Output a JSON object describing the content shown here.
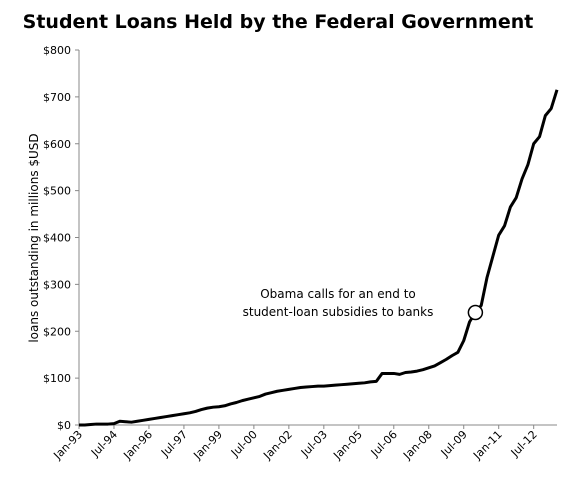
{
  "chart_data": {
    "type": "line",
    "title": "Student Loans Held by the Federal Government",
    "y_label": "loans outstanding in millions $USD",
    "annotation": [
      "Obama calls for an end to",
      "student-loan subsidies to banks"
    ],
    "categories": [
      "Jan-93",
      null,
      null,
      null,
      null,
      null,
      "Jul-94",
      null,
      null,
      null,
      null,
      null,
      "Jan-96",
      null,
      null,
      null,
      null,
      null,
      "Jul-97",
      null,
      null,
      null,
      null,
      null,
      "Jan-99",
      null,
      null,
      null,
      null,
      null,
      "Jul-00",
      null,
      null,
      null,
      null,
      null,
      "Jan-02",
      null,
      null,
      null,
      null,
      null,
      "Jul-03",
      null,
      null,
      null,
      null,
      null,
      "Jan-05",
      null,
      null,
      null,
      null,
      null,
      "Jul-06",
      null,
      null,
      null,
      null,
      null,
      "Jan-08",
      null,
      null,
      null,
      null,
      null,
      "Jul-09",
      null,
      null,
      null,
      null,
      null,
      "Jan-11",
      null,
      null,
      null,
      null,
      null,
      "Jul-12",
      null,
      null,
      null,
      null
    ],
    "series": [
      {
        "color": "#000000",
        "values": [
          0,
          0,
          1,
          2,
          2,
          2,
          3,
          8,
          7,
          6,
          8,
          10,
          12,
          14,
          16,
          18,
          20,
          22,
          24,
          26,
          29,
          33,
          36,
          38,
          39,
          41,
          45,
          48,
          52,
          55,
          58,
          61,
          66,
          69,
          72,
          74,
          76,
          78,
          80,
          81,
          82,
          83,
          83,
          84,
          85,
          86,
          87,
          88,
          89,
          90,
          92,
          93,
          110,
          110,
          110,
          108,
          112,
          113,
          115,
          118,
          122,
          126,
          133,
          140,
          148,
          155,
          180,
          220,
          240,
          255,
          315,
          360,
          405,
          425,
          465,
          485,
          525,
          555,
          600,
          615,
          660,
          675,
          715
        ]
      }
    ],
    "ylim": [
      0,
      800
    ],
    "yticks": [
      {
        "value": 0,
        "label": "$0"
      },
      {
        "value": 100,
        "label": "$100"
      },
      {
        "value": 200,
        "label": "$200"
      },
      {
        "value": 300,
        "label": "$300"
      },
      {
        "value": 400,
        "label": "$400"
      },
      {
        "value": 500,
        "label": "$500"
      },
      {
        "value": 600,
        "label": "$600"
      },
      {
        "value": 700,
        "label": "$700"
      },
      {
        "value": 800,
        "label": "$800"
      }
    ],
    "grid": false
  }
}
